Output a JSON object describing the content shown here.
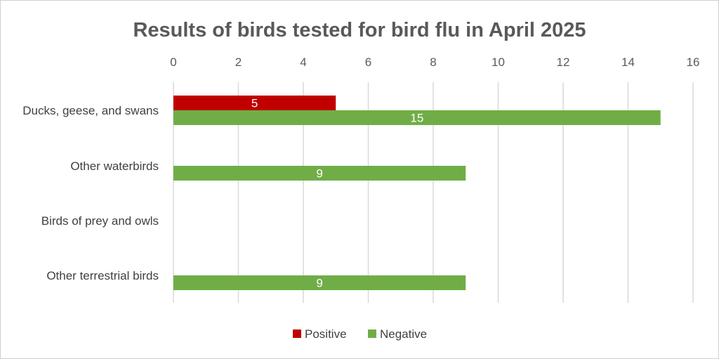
{
  "chart_data": {
    "type": "bar",
    "orientation": "horizontal",
    "title": "Results of birds tested for bird flu in April 2025",
    "xlabel": "",
    "ylabel": "",
    "xlim": [
      0,
      16
    ],
    "x_ticks": [
      0,
      2,
      4,
      6,
      8,
      10,
      12,
      14,
      16
    ],
    "x_tick_labels": [
      "0",
      "2",
      "4",
      "6",
      "8",
      "10",
      "12",
      "14",
      "16"
    ],
    "axis_position": "top",
    "grid": true,
    "legend_position": "bottom",
    "categories": [
      "Ducks, geese, and swans",
      "Other waterbirds",
      "Birds of prey and owls",
      "Other terrestrial birds"
    ],
    "series": [
      {
        "name": "Positive",
        "color": "#c00000",
        "values": [
          5,
          null,
          null,
          null
        ],
        "data_labels": [
          "5",
          "",
          "",
          ""
        ]
      },
      {
        "name": "Negative",
        "color": "#70ad47",
        "values": [
          15,
          9,
          null,
          9
        ],
        "data_labels": [
          "15",
          "9",
          "",
          "9"
        ]
      }
    ]
  }
}
